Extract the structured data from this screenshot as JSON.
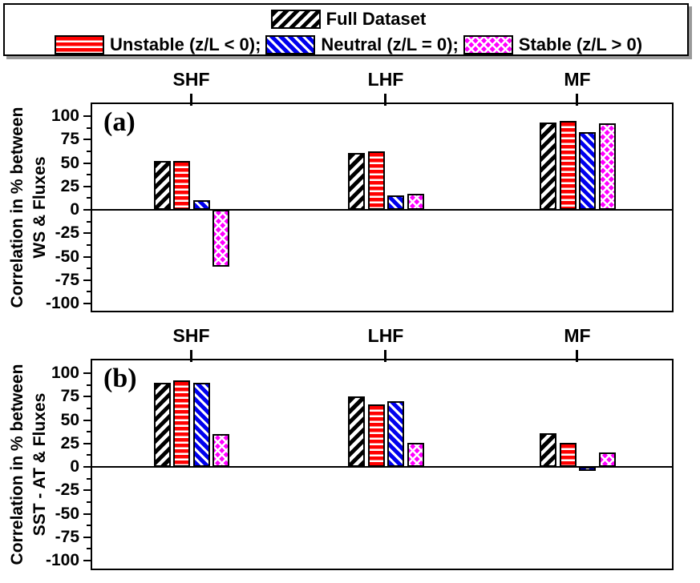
{
  "legend": {
    "full_dataset": "Full Dataset",
    "unstable": "Unstable (z/L < 0);",
    "neutral": "Neutral (z/L = 0);",
    "stable": "Stable (z/L > 0)"
  },
  "colors": {
    "full": "#000000",
    "unstable": "#ff0000",
    "neutral": "#0000ee",
    "stable": "#ff00ff"
  },
  "chart_data": [
    {
      "type": "bar",
      "panel_label": "(a)",
      "ylabel_line1": "Correlation in % between",
      "ylabel_line2": "WS & Fluxes",
      "categories": [
        "SHF",
        "LHF",
        "MF"
      ],
      "series": [
        {
          "name": "Full Dataset",
          "key": "full",
          "values": [
            52,
            61,
            93
          ]
        },
        {
          "name": "Unstable (z/L < 0)",
          "key": "unstable",
          "values": [
            52,
            62,
            95
          ]
        },
        {
          "name": "Neutral (z/L = 0)",
          "key": "neutral",
          "values": [
            10,
            15,
            83
          ]
        },
        {
          "name": "Stable (z/L > 0)",
          "key": "stable",
          "values": [
            -61,
            17,
            92
          ]
        }
      ],
      "yticks": [
        100,
        75,
        50,
        25,
        0,
        -25,
        -50,
        -75,
        -100
      ],
      "ylim": [
        -112,
        112
      ],
      "grid": false,
      "legend_position": "top"
    },
    {
      "type": "bar",
      "panel_label": "(b)",
      "ylabel_line1": "Correlation in % between",
      "ylabel_line2": "SST - AT & Fluxes",
      "categories": [
        "SHF",
        "LHF",
        "MF"
      ],
      "series": [
        {
          "name": "Full Dataset",
          "key": "full",
          "values": [
            90,
            75,
            36
          ]
        },
        {
          "name": "Unstable (z/L < 0)",
          "key": "unstable",
          "values": [
            92,
            67,
            26
          ]
        },
        {
          "name": "Neutral (z/L = 0)",
          "key": "neutral",
          "values": [
            90,
            70,
            -4
          ]
        },
        {
          "name": "Stable (z/L > 0)",
          "key": "stable",
          "values": [
            35,
            26,
            15
          ]
        }
      ],
      "yticks": [
        100,
        75,
        50,
        25,
        0,
        -25,
        -50,
        -75,
        -100
      ],
      "ylim": [
        -113,
        113
      ],
      "grid": false,
      "legend_position": "top"
    }
  ]
}
